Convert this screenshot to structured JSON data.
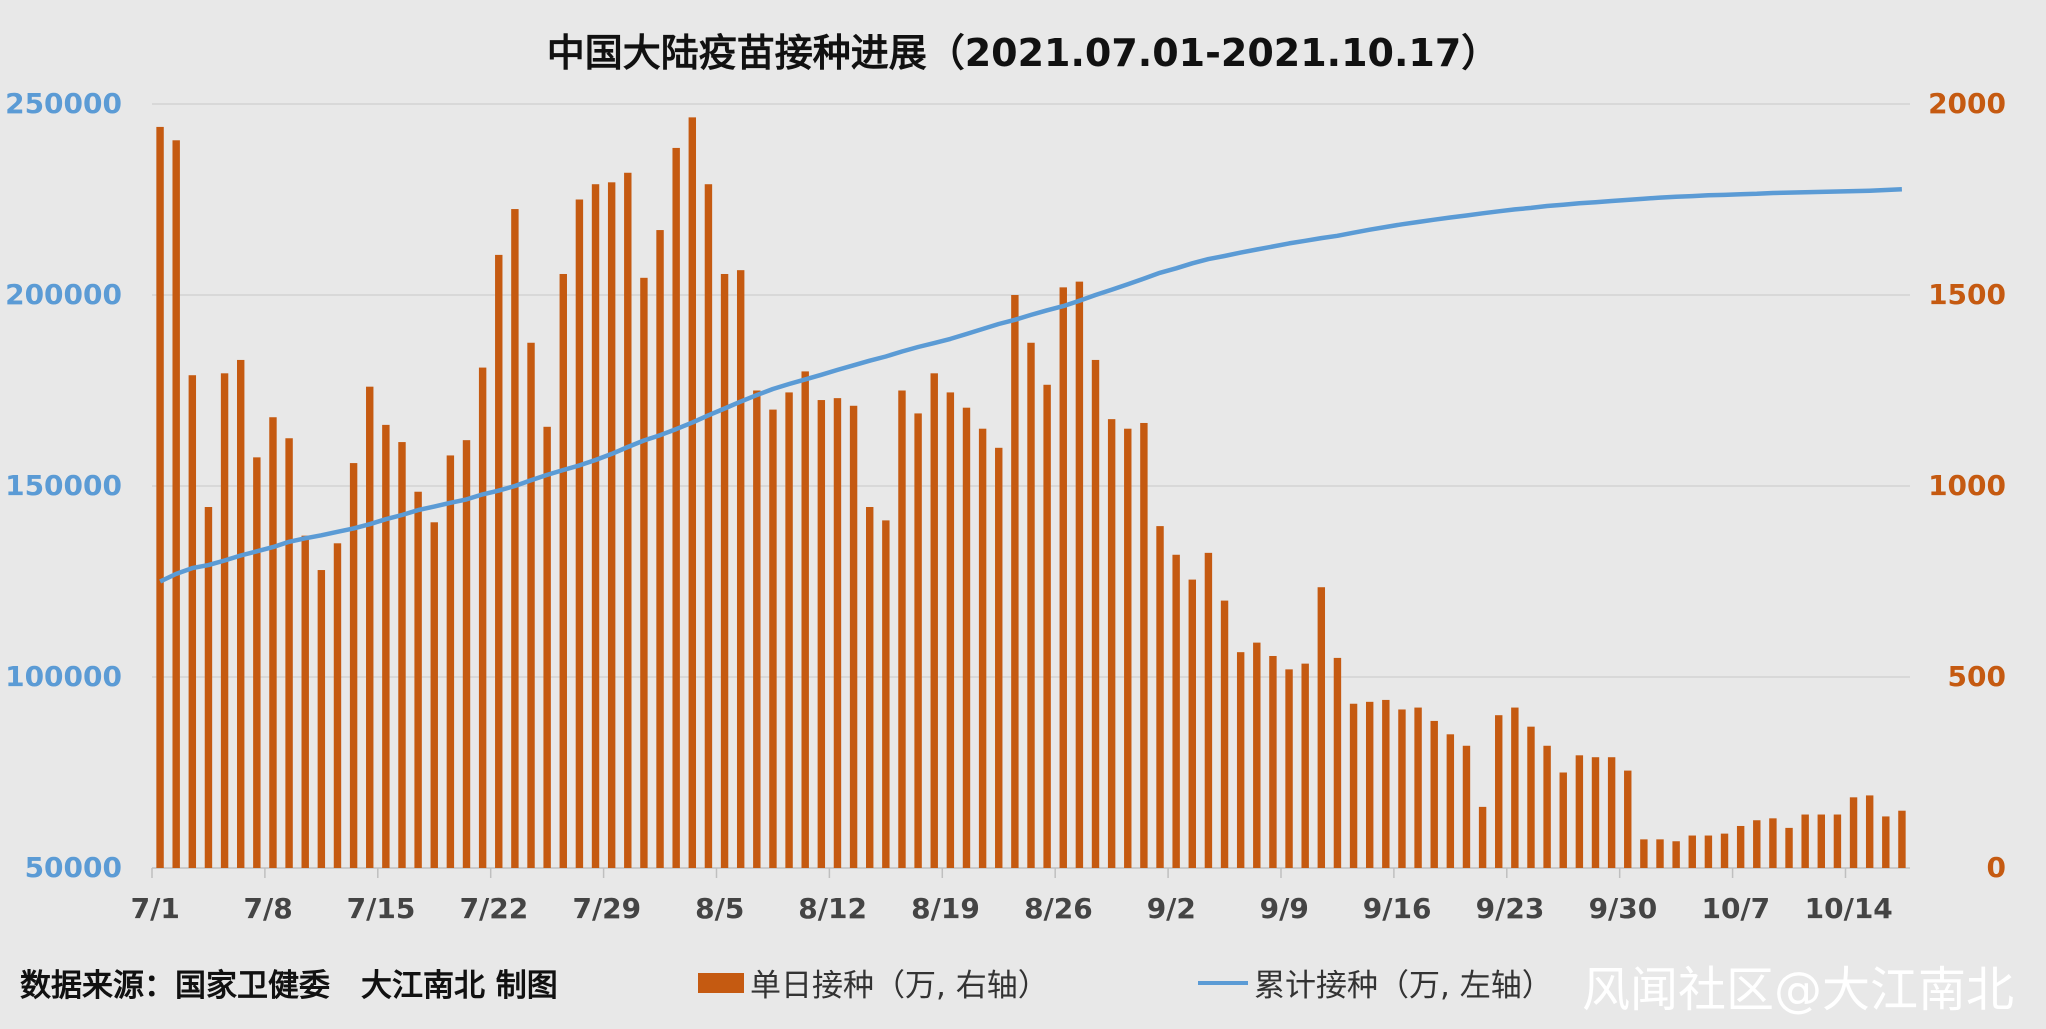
{
  "title": "中国大陆疫苗接种进展（2021.07.01-2021.10.17）",
  "footer": {
    "source": "数据来源：国家卫健委　大江南北 制图",
    "legend_bar": "单日接种（万, 右轴）",
    "legend_line": "累计接种（万, 左轴）",
    "watermark": "风闻社区@大江南北"
  },
  "chart_data": {
    "type": "bar+line",
    "x_tick_labels": [
      "7/1",
      "7/8",
      "7/15",
      "7/22",
      "7/29",
      "8/5",
      "8/12",
      "8/19",
      "8/26",
      "9/2",
      "9/9",
      "9/16",
      "9/23",
      "9/30",
      "10/7",
      "10/14"
    ],
    "left_axis": {
      "min": 50000,
      "max": 250000,
      "ticks": [
        50000,
        100000,
        150000,
        200000,
        250000
      ],
      "color": "#5b9bd5"
    },
    "right_axis": {
      "min": 0,
      "max": 2000,
      "ticks": [
        0,
        500,
        1000,
        1500,
        2000
      ],
      "color": "#c55a11"
    },
    "grid": true,
    "legend_position": "bottom",
    "series": [
      {
        "name": "单日接种（万, 右轴）",
        "type": "bar",
        "axis": "right",
        "color": "#c55a11",
        "values": [
          1940,
          1905,
          1290,
          945,
          1295,
          1330,
          1075,
          1180,
          1125,
          870,
          780,
          850,
          1060,
          1260,
          1160,
          1115,
          985,
          905,
          1080,
          1120,
          1310,
          1605,
          1725,
          1375,
          1155,
          1555,
          1750,
          1790,
          1795,
          1820,
          1545,
          1670,
          1885,
          1965,
          1790,
          1555,
          1565,
          1250,
          1200,
          1245,
          1300,
          1225,
          1230,
          1210,
          945,
          910,
          1250,
          1190,
          1295,
          1245,
          1205,
          1150,
          1100,
          1500,
          1375,
          1265,
          1520,
          1535,
          1330,
          1175,
          1150,
          1165,
          895,
          820,
          755,
          825,
          700,
          565,
          590,
          555,
          520,
          535,
          735,
          550,
          430,
          435,
          440,
          415,
          420,
          385,
          350,
          320,
          160,
          400,
          420,
          370,
          320,
          250,
          295,
          290,
          290,
          255,
          75,
          75,
          70,
          85,
          85,
          90,
          110,
          125,
          130,
          105,
          140,
          140,
          140,
          185,
          190,
          135,
          150
        ]
      },
      {
        "name": "累计接种（万, 左轴）",
        "type": "line",
        "axis": "left",
        "color": "#5b9bd5",
        "values": [
          125000,
          127000,
          128500,
          129300,
          130500,
          131800,
          132900,
          134000,
          135400,
          136300,
          137100,
          138000,
          138900,
          140000,
          141300,
          142400,
          143700,
          144600,
          145600,
          146500,
          147800,
          148800,
          150000,
          151500,
          152900,
          154200,
          155400,
          156800,
          158400,
          160200,
          161900,
          163300,
          164900,
          166600,
          168500,
          170300,
          172100,
          173800,
          175400,
          176700,
          177900,
          179100,
          180400,
          181600,
          182800,
          183900,
          185200,
          186400,
          187400,
          188500,
          189800,
          191100,
          192400,
          193500,
          194800,
          196000,
          197100,
          198500,
          200000,
          201400,
          202800,
          204300,
          205800,
          207000,
          208300,
          209400,
          210200,
          211100,
          211900,
          212700,
          213500,
          214200,
          214900,
          215500,
          216300,
          217100,
          217800,
          218500,
          219100,
          219700,
          220300,
          220800,
          221400,
          221900,
          222400,
          222800,
          223300,
          223600,
          224000,
          224300,
          224600,
          224900,
          225200,
          225500,
          225700,
          225900,
          226100,
          226200,
          226400,
          226500,
          226700,
          226800,
          226900,
          227000,
          227100,
          227200,
          227300,
          227500,
          227700
        ]
      }
    ]
  }
}
